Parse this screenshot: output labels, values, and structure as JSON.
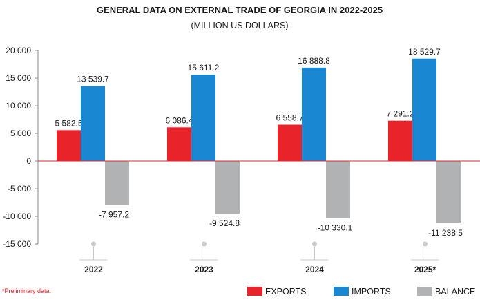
{
  "chart_data": {
    "type": "bar",
    "title": "GENERAL DATA ON EXTERNAL TRADE OF GEORGIA IN 2022-2025",
    "subtitle": "(MILLION US DOLLARS)",
    "categories": [
      "2022",
      "2023",
      "2024",
      "2025*"
    ],
    "series": [
      {
        "name": "EXPORTS",
        "color": "#e8232a",
        "values": [
          5582.5,
          6086.4,
          6558.7,
          7291.2
        ],
        "labels": [
          "5 582.5",
          "6 086.4",
          "6 558.7",
          "7 291.2"
        ]
      },
      {
        "name": "IMPORTS",
        "color": "#1a87d3",
        "values": [
          13539.7,
          15611.2,
          16888.8,
          18529.7
        ],
        "labels": [
          "13 539.7",
          "15 611.2",
          "16 888.8",
          "18 529.7"
        ]
      },
      {
        "name": "BALANCE",
        "color": "#b0b2b4",
        "values": [
          -7957.2,
          -9524.8,
          -10330.1,
          -11238.5
        ],
        "labels": [
          "-7 957.2",
          "-9 524.8",
          "-10 330.1",
          "-11 238.5"
        ]
      }
    ],
    "ylim": [
      -15000,
      20000
    ],
    "yticks": [
      20000,
      15000,
      10000,
      5000,
      0,
      -5000,
      -10000,
      -15000
    ],
    "ytick_labels": [
      "20 000",
      "15 000",
      "10 000",
      "5 000",
      "0",
      "-5 000",
      "-10 000",
      "-15 000"
    ],
    "zero_line_color": "#e8232a",
    "grid": false,
    "legend_position": "bottom-right",
    "footnote": "*Preliminary data.",
    "footnote_color": "#e8232a"
  }
}
